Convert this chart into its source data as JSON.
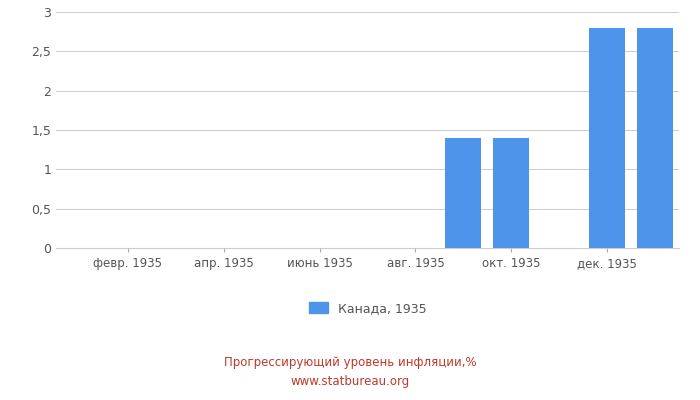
{
  "bar_color": "#4d94eb",
  "title_line1": "Прогрессирующий уровень инфляции,%",
  "title_line2": "www.statbureau.org",
  "title_color": "#c0392b",
  "legend_label": "Канада, 1935",
  "ylim": [
    0,
    3.0
  ],
  "yticks": [
    0,
    0.5,
    1,
    1.5,
    2,
    2.5,
    3
  ],
  "ytick_labels": [
    "0",
    "0,5",
    "1",
    "1,5",
    "2",
    "2,5",
    "3"
  ],
  "xtick_positions": [
    2,
    4,
    6,
    8,
    10,
    12
  ],
  "xtick_labels": [
    "февр. 1935",
    "апр. 1935",
    "июнь 1935",
    "авг. 1935",
    "окт. 1935",
    "дек. 1935"
  ],
  "xlim": [
    0.5,
    13.5
  ],
  "background_color": "#ffffff",
  "grid_color": "#cccccc",
  "bar_positions": [
    9,
    10,
    12,
    13
  ],
  "bar_values": [
    1.4,
    1.4,
    2.8,
    2.8
  ],
  "bar_width": 0.75
}
